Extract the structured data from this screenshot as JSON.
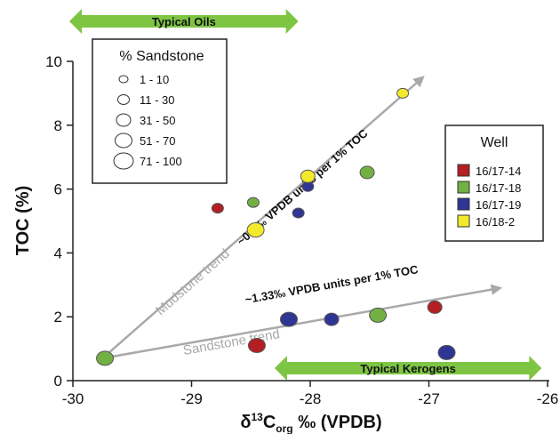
{
  "chart_data": {
    "type": "scatter",
    "xlabel_main": "δ",
    "xlabel_sup": "13",
    "xlabel_c": "C",
    "xlabel_sub": "org",
    "xlabel_rest": " ‰ (VPDB)",
    "ylabel": "TOC (%)",
    "xlim": [
      -30,
      -26
    ],
    "ylim": [
      0,
      10
    ],
    "xticks": [
      "-30",
      "-29",
      "-28",
      "-27",
      "-26"
    ],
    "yticks": [
      "0",
      "2",
      "4",
      "6",
      "8",
      "10"
    ],
    "grid": false,
    "size_legend": {
      "title": "% Sandstone",
      "items": [
        "1 - 10",
        "11 - 30",
        "31 - 50",
        "51 - 70",
        "71 - 100"
      ]
    },
    "well_legend": {
      "title": "Well",
      "items": [
        {
          "label": "16/17-14",
          "color": "#b41f24"
        },
        {
          "label": "16/17-18",
          "color": "#72b043"
        },
        {
          "label": "16/17-19",
          "color": "#2e3592"
        },
        {
          "label": "16/18-2",
          "color": "#f2ea2a"
        }
      ]
    },
    "bands": [
      {
        "label": "Typical Oils",
        "x_range": [
          -30,
          -28.1
        ],
        "color": "#7ec544"
      },
      {
        "label": "Typical Kerogens",
        "x_range": [
          -28.3,
          -26.05
        ],
        "color": "#7ec544"
      }
    ],
    "trends": [
      {
        "label": "Mudstone trend",
        "slope_label": "~0.3‰ VPDB units per 1% TOC",
        "from": [
          -29.75,
          0.7
        ],
        "to": [
          -27.05,
          9.5
        ]
      },
      {
        "label": "Sandstone trend",
        "slope_label": "~1.33‰ VPDB units per 1% TOC",
        "from": [
          -29.75,
          0.7
        ],
        "to": [
          -26.4,
          2.9
        ]
      }
    ],
    "series": [
      {
        "name": "16/17-14",
        "color": "#b41f24",
        "points": [
          {
            "x": -28.78,
            "y": 5.4,
            "size": 2
          },
          {
            "x": -28.45,
            "y": 1.1,
            "size": 4
          },
          {
            "x": -26.95,
            "y": 2.3,
            "size": 3
          }
        ]
      },
      {
        "name": "16/17-18",
        "color": "#72b043",
        "points": [
          {
            "x": -29.73,
            "y": 0.7,
            "size": 4
          },
          {
            "x": -28.48,
            "y": 5.58,
            "size": 2
          },
          {
            "x": -27.52,
            "y": 6.52,
            "size": 3
          },
          {
            "x": -27.43,
            "y": 2.05,
            "size": 4
          }
        ]
      },
      {
        "name": "16/17-19",
        "color": "#2e3592",
        "points": [
          {
            "x": -28.1,
            "y": 5.25,
            "size": 2
          },
          {
            "x": -28.02,
            "y": 6.08,
            "size": 2
          },
          {
            "x": -28.18,
            "y": 1.92,
            "size": 4
          },
          {
            "x": -27.82,
            "y": 1.92,
            "size": 3
          },
          {
            "x": -26.85,
            "y": 0.88,
            "size": 4
          }
        ]
      },
      {
        "name": "16/18-2",
        "color": "#f2ea2a",
        "points": [
          {
            "x": -28.02,
            "y": 6.4,
            "size": 3
          },
          {
            "x": -28.46,
            "y": 4.72,
            "size": 4
          },
          {
            "x": -27.22,
            "y": 9.0,
            "size": 2
          }
        ]
      }
    ]
  }
}
